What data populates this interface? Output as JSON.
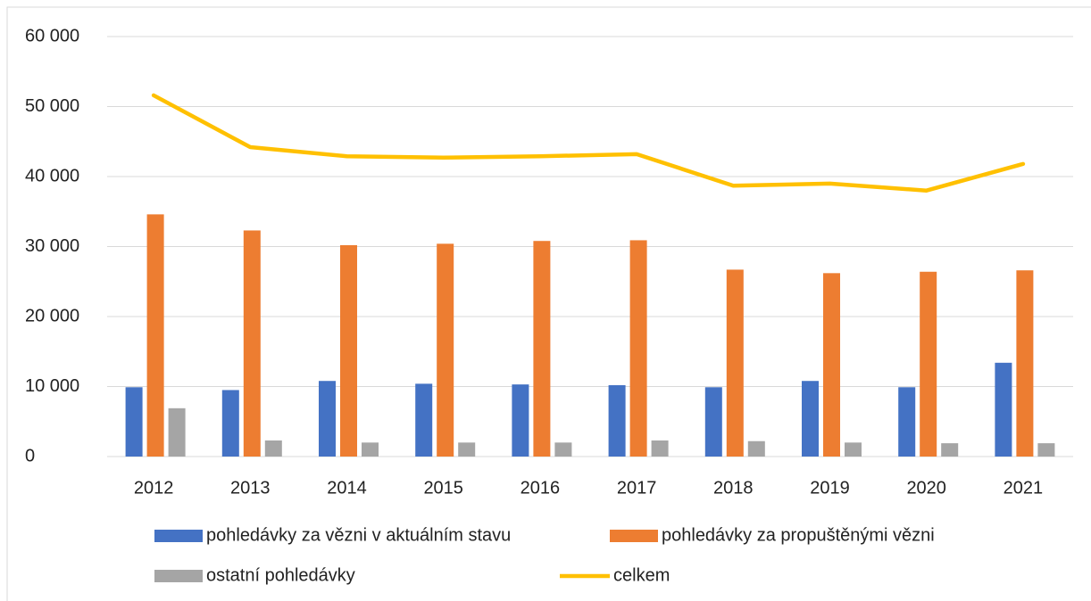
{
  "chart_data": {
    "type": "bar_line",
    "categories": [
      "2012",
      "2013",
      "2014",
      "2015",
      "2016",
      "2017",
      "2018",
      "2019",
      "2020",
      "2021"
    ],
    "series": [
      {
        "name": "pohledávky za vězni v aktuálním stavu",
        "type": "bar",
        "color": "#4472c4",
        "values": [
          9900,
          9500,
          10800,
          10400,
          10300,
          10200,
          9900,
          10800,
          9900,
          13400
        ]
      },
      {
        "name": "pohledávky za propuštěnými vězni",
        "type": "bar",
        "color": "#ed7d31",
        "values": [
          34600,
          32300,
          30200,
          30400,
          30800,
          30900,
          26700,
          26200,
          26400,
          26600
        ]
      },
      {
        "name": "ostatní pohledávky",
        "type": "bar",
        "color": "#a5a5a5",
        "values": [
          6900,
          2300,
          2000,
          2000,
          2000,
          2300,
          2200,
          2000,
          1900,
          1900
        ]
      },
      {
        "name": "celkem",
        "type": "line",
        "color": "#ffc000",
        "values": [
          51600,
          44200,
          42900,
          42700,
          42900,
          43200,
          38700,
          39000,
          38000,
          41800
        ]
      }
    ],
    "ylim": [
      0,
      60000
    ],
    "yticks": [
      0,
      {
        "value": 10000,
        "label": "10 000"
      },
      {
        "value": 20000,
        "label": "20 000"
      },
      {
        "value": 30000,
        "label": "30 000"
      },
      {
        "value": 40000,
        "label": "40 000"
      },
      {
        "value": 50000,
        "label": "50 000"
      },
      {
        "value": 60000,
        "label": "60 000"
      }
    ],
    "grid": true,
    "legend": "bottom"
  }
}
